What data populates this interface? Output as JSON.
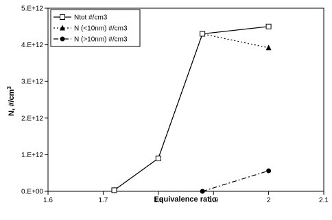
{
  "chart_data": {
    "type": "line",
    "xlabel": "Equivalence ratio",
    "ylabel_main": "N, #/cm",
    "ylabel_sup": "3",
    "xlim": [
      1.6,
      2.1
    ],
    "ylim": [
      0,
      5000000000000.0
    ],
    "x_ticks": [
      1.6,
      1.7,
      1.8,
      1.9,
      2.0,
      2.1
    ],
    "x_tick_labels": [
      "1.6",
      "1.7",
      "1.8",
      "1.9",
      "2",
      "2.1"
    ],
    "y_ticks": [
      0,
      1000000000000.0,
      2000000000000.0,
      3000000000000.0,
      4000000000000.0,
      5000000000000.0
    ],
    "y_tick_labels": [
      "0.E+00",
      "1.E+12",
      "2.E+12",
      "3.E+12",
      "4.E+12",
      "5.E+12"
    ],
    "grid": false,
    "legend_position": "top-left",
    "series": [
      {
        "name": "Ntot #/cm3",
        "line": "solid",
        "marker": "open-square",
        "x": [
          1.72,
          1.8,
          1.88,
          2.0
        ],
        "y": [
          30000000000.0,
          900000000000.0,
          4300000000000.0,
          4500000000000.0
        ]
      },
      {
        "name": "N (<10nm) #/cm3",
        "line": "dotted",
        "marker": "filled-triangle",
        "x": [
          1.72,
          1.8,
          1.88,
          2.0
        ],
        "y": [
          30000000000.0,
          900000000000.0,
          4300000000000.0,
          3920000000000.0
        ]
      },
      {
        "name": "N (>10nm) #/cm3",
        "line": "dash-dot",
        "marker": "filled-circle",
        "x": [
          1.88,
          2.0
        ],
        "y": [
          0,
          560000000000.0
        ]
      }
    ]
  }
}
